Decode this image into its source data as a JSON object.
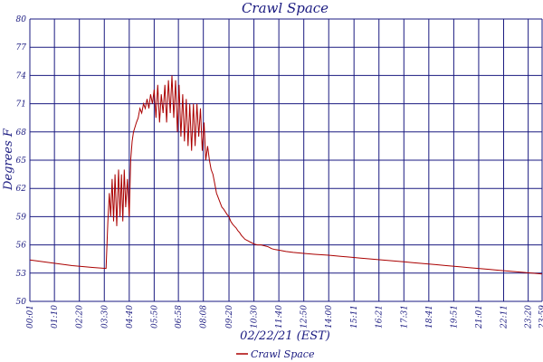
{
  "chart_data": {
    "type": "line",
    "title": "Crawl Space",
    "xlabel": "02/22/21 (EST)",
    "ylabel": "Degrees F",
    "ylim": [
      50,
      80
    ],
    "yticks": [
      50,
      53,
      56,
      59,
      62,
      65,
      68,
      71,
      74,
      77,
      80
    ],
    "ytick_labels": [
      "50",
      "53",
      "56",
      "59",
      "62",
      "65",
      "68",
      "71",
      "74",
      "77",
      "80"
    ],
    "xticks": [
      "00:01",
      "01:10",
      "02:20",
      "03:30",
      "04:40",
      "05:50",
      "06:58",
      "08:08",
      "09:20",
      "10:30",
      "11:40",
      "12:50",
      "14:00",
      "15:11",
      "16:21",
      "17:31",
      "18:41",
      "19:51",
      "21:01",
      "22:11",
      "23:20",
      "23:59"
    ],
    "xtick_labels": [
      "00:01",
      "01:10",
      "02:20",
      "03:30",
      "04:40",
      "05:50",
      "06:58",
      "08:08",
      "09:20",
      "10:30",
      "11:40",
      "12:50",
      "14:00",
      "15:11",
      "16:21",
      "17:31",
      "18:41",
      "19:51",
      "21:01",
      "22:11",
      "23:20",
      "23:59"
    ],
    "grid": true,
    "legend": "bottom-center",
    "series": [
      {
        "name": "Crawl Space",
        "color": "#aa0000",
        "x": [
          "00:01",
          "01:00",
          "02:00",
          "03:00",
          "03:35",
          "03:40",
          "03:44",
          "03:48",
          "03:52",
          "03:56",
          "04:00",
          "04:05",
          "04:10",
          "04:14",
          "04:18",
          "04:22",
          "04:26",
          "04:30",
          "04:35",
          "04:40",
          "04:44",
          "04:48",
          "04:52",
          "04:56",
          "05:00",
          "05:05",
          "05:10",
          "05:15",
          "05:20",
          "05:25",
          "05:30",
          "05:35",
          "05:40",
          "05:45",
          "05:50",
          "05:55",
          "06:00",
          "06:05",
          "06:10",
          "06:15",
          "06:20",
          "06:25",
          "06:30",
          "06:35",
          "06:40",
          "06:45",
          "06:50",
          "06:55",
          "07:00",
          "07:05",
          "07:10",
          "07:15",
          "07:20",
          "07:25",
          "07:30",
          "07:35",
          "07:40",
          "07:45",
          "07:50",
          "07:55",
          "08:00",
          "08:05",
          "08:10",
          "08:15",
          "08:20",
          "08:25",
          "08:30",
          "08:35",
          "08:40",
          "08:45",
          "08:50",
          "08:55",
          "09:00",
          "09:05",
          "09:10",
          "09:15",
          "09:20",
          "09:25",
          "09:30",
          "09:35",
          "09:40",
          "09:45",
          "09:50",
          "09:55",
          "10:00",
          "10:05",
          "10:10",
          "10:15",
          "10:20",
          "10:25",
          "10:30",
          "10:40",
          "10:50",
          "11:00",
          "11:10",
          "11:20",
          "11:30",
          "11:45",
          "12:00",
          "12:20",
          "12:50",
          "13:20",
          "14:00",
          "14:30",
          "15:00",
          "15:30",
          "16:00",
          "16:30",
          "17:00",
          "17:30",
          "18:00",
          "18:30",
          "19:00",
          "19:30",
          "20:00",
          "20:30",
          "21:00",
          "21:30",
          "22:00",
          "22:30",
          "23:00",
          "23:30",
          "23:59"
        ],
        "values": [
          54.4,
          54.1,
          53.8,
          53.6,
          53.5,
          58.5,
          61.5,
          59.0,
          63.0,
          58.5,
          63.5,
          58.0,
          64.0,
          59.0,
          63.5,
          58.5,
          64.0,
          60.0,
          63.0,
          59.0,
          65.0,
          67.0,
          68.0,
          68.5,
          69.0,
          69.5,
          70.5,
          70.0,
          71.0,
          70.5,
          71.5,
          70.5,
          72.0,
          71.0,
          72.5,
          69.5,
          73.0,
          69.0,
          72.0,
          70.0,
          73.0,
          69.0,
          73.5,
          70.0,
          74.0,
          69.5,
          73.5,
          68.0,
          73.0,
          67.5,
          72.0,
          67.0,
          71.5,
          66.5,
          71.0,
          66.0,
          71.0,
          66.5,
          71.0,
          67.5,
          70.5,
          66.0,
          69.0,
          65.0,
          66.5,
          65.0,
          64.0,
          63.5,
          62.5,
          61.5,
          61.0,
          60.5,
          60.0,
          59.8,
          59.5,
          59.2,
          59.0,
          58.5,
          58.2,
          58.0,
          57.8,
          57.5,
          57.3,
          57.0,
          56.8,
          56.6,
          56.5,
          56.4,
          56.3,
          56.2,
          56.1,
          56.0,
          56.0,
          55.9,
          55.8,
          55.6,
          55.5,
          55.4,
          55.3,
          55.2,
          55.1,
          55.0,
          54.9,
          54.8,
          54.7,
          54.6,
          54.5,
          54.4,
          54.3,
          54.2,
          54.1,
          54.0,
          53.9,
          53.8,
          53.7,
          53.6,
          53.5,
          53.4,
          53.3,
          53.2,
          53.1,
          53.0,
          52.9
        ]
      }
    ]
  }
}
